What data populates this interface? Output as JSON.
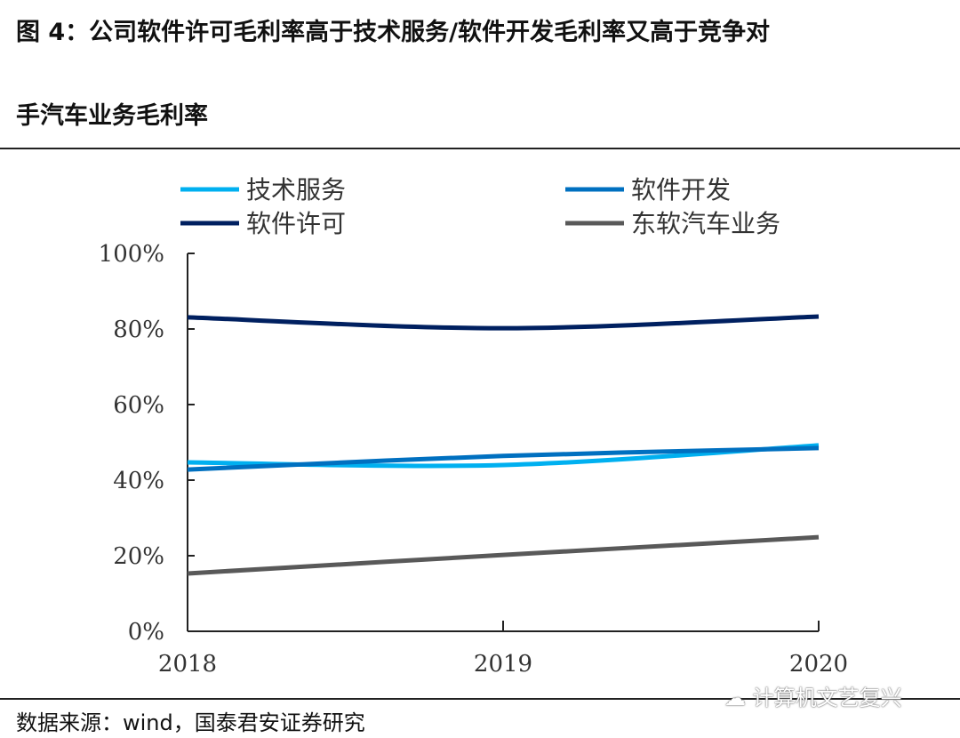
{
  "title_line1": "图 4：公司软件许可毛利率高于技术服务/软件开发毛利率又高于竞争对",
  "title_line2": "手汽车业务毛利率",
  "source": "数据来源：wind，国泰君安证券研究",
  "watermark": "计算机文艺复兴",
  "chart_data": {
    "type": "line",
    "categories": [
      "2018",
      "2019",
      "2020"
    ],
    "ylim": [
      0,
      100
    ],
    "yticks": [
      "0%",
      "20%",
      "40%",
      "60%",
      "80%",
      "100%"
    ],
    "grid": false,
    "legend_placement": "top",
    "series": [
      {
        "name": "技术服务",
        "color": "#00B0F0",
        "values": [
          44.7,
          44.0,
          49.2
        ]
      },
      {
        "name": "软件开发",
        "color": "#0070C0",
        "values": [
          42.8,
          46.4,
          48.5
        ]
      },
      {
        "name": "软件许可",
        "color": "#002060",
        "values": [
          83.1,
          80.2,
          83.3
        ]
      },
      {
        "name": "东软汽车业务",
        "color": "#595959",
        "values": [
          15.3,
          20.2,
          24.9
        ]
      }
    ]
  }
}
